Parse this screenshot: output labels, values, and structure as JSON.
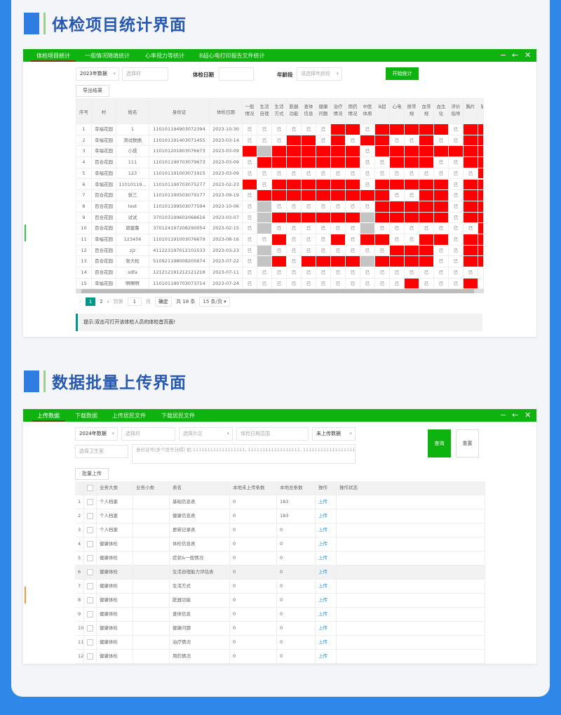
{
  "colors": {
    "background": "#2f88e8",
    "header_green": "#0fb30f",
    "missing": "#ff0000",
    "na": "#c4c4c4",
    "title": "#2759b0"
  },
  "section1": {
    "heading": "体检项目统计界面"
  },
  "section2": {
    "heading": "数据批量上传界面"
  },
  "stats": {
    "tabs": [
      "体检项目统计",
      "一般情况随填统计",
      "心率视力等统计",
      "B超心电打印报告文件统计"
    ],
    "window_controls": [
      "minimize-icon",
      "back-icon",
      "close-icon"
    ],
    "filters": {
      "year": "2023年数据",
      "village_placeholder": "选择村",
      "date_label": "体检日期",
      "age_label": "年龄段",
      "age_placeholder": "请选择年龄段",
      "start_button": "开始统计"
    },
    "export_button": "导出结果",
    "columns": [
      "序号",
      "村",
      "姓名",
      "身份证",
      "体检日期",
      "一般情况",
      "生活自理",
      "生活方式",
      "脏器功能",
      "查体信息",
      "健康问题",
      "治疗情况",
      "用药情况",
      "中医体质",
      "B超",
      "心电",
      "尿常规",
      "血常规",
      "血生化",
      "评价指导",
      "胸片",
      "辅检其"
    ],
    "done_text": "已",
    "status_codes": {
      "y": "done",
      "r": "missing",
      "g": "not-applicable"
    },
    "rows": [
      {
        "no": "1",
        "village": "幸福花园",
        "name": "1",
        "id": "110101194903072394",
        "date": "2023-10-30",
        "status": "yyyyyyrryrrrrryrr"
      },
      {
        "no": "2",
        "village": "幸福花园",
        "name": "测试数据",
        "id": "110101191403071455",
        "date": "2023-03-14",
        "status": "yyyrryryrryyryyrr"
      },
      {
        "no": "3",
        "village": "幸福花园",
        "name": "小孩",
        "id": "110101201803076673",
        "date": "2023-03-09",
        "status": "rgrrrrrryrrrrrrrr"
      },
      {
        "no": "4",
        "village": "百合花园",
        "name": "111",
        "id": "110101190703079673",
        "date": "2023-03-09",
        "status": "yrrrrrrryyrrryyrr"
      },
      {
        "no": "5",
        "village": "幸福花园",
        "name": "123",
        "id": "110101191003071915",
        "date": "2023-03-09",
        "status": "yyyyyyyyyyyyyyyyr"
      },
      {
        "no": "6",
        "village": "幸福花园",
        "name": "11010119...",
        "id": "110101190703075277",
        "date": "2023-02-23",
        "status": "ryrrrrrryrrrrryrr"
      },
      {
        "no": "7",
        "village": "百合花园",
        "name": "张三",
        "id": "110101190503079177",
        "date": "2023-09-19",
        "status": "yrrrrrrrrryyrryrr"
      },
      {
        "no": "8",
        "village": "百合花园",
        "name": "test",
        "id": "110101199503077594",
        "date": "2023-10-06",
        "status": "ygyyyyyyyrrrrryrr"
      },
      {
        "no": "9",
        "village": "百合花园",
        "name": "试试",
        "id": "370103199602068616",
        "date": "2023-03-07",
        "status": "ygrrrrrrgrrrrryrr"
      },
      {
        "no": "10",
        "village": "百合花园",
        "name": "郭建鲁",
        "id": "370124197208290054",
        "date": "2023-02-15",
        "status": "ygyyyyyygyyyyyyyr"
      },
      {
        "no": "11",
        "village": "幸福花园",
        "name": "123456",
        "id": "110101191003076679",
        "date": "2023-08-16",
        "status": "yyryyyryrryyrryrr"
      },
      {
        "no": "12",
        "village": "百合花园",
        "name": "zjz",
        "id": "411223197012101533",
        "date": "2023-03-23",
        "status": "ygyyyyyyyyrrryyrr"
      },
      {
        "no": "13",
        "village": "百合花园",
        "name": "张大松",
        "id": "510921198008205674",
        "date": "2023-07-22",
        "status": "ygryrrrrgrrrryyrr"
      },
      {
        "no": "14",
        "village": "百合花园",
        "name": "sdfa",
        "id": "121212191212121218",
        "date": "2023-07-11",
        "status": "yyyyyyyyyyyyyyyyy"
      },
      {
        "no": "15",
        "village": "幸福花园",
        "name": "啊啊啊",
        "id": "110101190703073714",
        "date": "2023-07-24",
        "status": "yyyyyyyyyyyryyyry"
      }
    ],
    "pagination": {
      "pages": [
        "1",
        "2"
      ],
      "current": "1",
      "goto_label": "到第",
      "goto_value": "1",
      "page_unit": "页",
      "confirm": "确定",
      "total": "共 18 条",
      "page_size": "15 条/页"
    },
    "hint": "提示:双击可打开该体检人员的体检首页面!"
  },
  "upload": {
    "tabs": [
      "上传数据",
      "下载数据",
      "上传居民文件",
      "下载居民文件"
    ],
    "window_controls": [
      "minimize-icon",
      "back-icon",
      "close-icon"
    ],
    "filters": {
      "year": "2024年数据",
      "village_placeholder": "选择村",
      "area_placeholder": "选择片区",
      "date_range_placeholder": "体检日期范围",
      "upload_status": "未上传数据",
      "clinic_placeholder": "选择卫生室",
      "id_placeholder": "身份证号(多个逗号分隔) 如:111111111111111111, 111111111111111111, 111111111111111111"
    },
    "query_button": "查询",
    "reset_button": "重置",
    "batch_button": "批量上传",
    "columns": [
      "",
      "",
      "业务大类",
      "业务小类",
      "表名",
      "本地未上传条数",
      "本地总条数",
      "操作",
      "操作状态"
    ],
    "action_label": "上传",
    "rows": [
      {
        "no": "1",
        "major": "个人档案",
        "minor": "",
        "table": "基础信息表",
        "pending": "0",
        "total": "183"
      },
      {
        "no": "2",
        "major": "个人档案",
        "minor": "",
        "table": "健康信息表",
        "pending": "0",
        "total": "183"
      },
      {
        "no": "3",
        "major": "个人档案",
        "minor": "",
        "table": "更新记录表",
        "pending": "0",
        "total": "0"
      },
      {
        "no": "4",
        "major": "健康体检",
        "minor": "",
        "table": "体检信息表",
        "pending": "0",
        "total": "0"
      },
      {
        "no": "5",
        "major": "健康体检",
        "minor": "",
        "table": "症状&一般情况",
        "pending": "0",
        "total": "0"
      },
      {
        "no": "6",
        "major": "健康体检",
        "minor": "",
        "table": "生活自理能力评估表",
        "pending": "0",
        "total": "0"
      },
      {
        "no": "7",
        "major": "健康体检",
        "minor": "",
        "table": "生活方式",
        "pending": "0",
        "total": "0"
      },
      {
        "no": "8",
        "major": "健康体检",
        "minor": "",
        "table": "脏器功能",
        "pending": "0",
        "total": "0"
      },
      {
        "no": "9",
        "major": "健康体检",
        "minor": "",
        "table": "查体信息",
        "pending": "0",
        "total": "0"
      },
      {
        "no": "10",
        "major": "健康体检",
        "minor": "",
        "table": "健康问题",
        "pending": "0",
        "total": "0"
      },
      {
        "no": "11",
        "major": "健康体检",
        "minor": "",
        "table": "治疗情况",
        "pending": "0",
        "total": "0"
      },
      {
        "no": "12",
        "major": "健康体检",
        "minor": "",
        "table": "用药情况",
        "pending": "0",
        "total": "0"
      }
    ]
  }
}
